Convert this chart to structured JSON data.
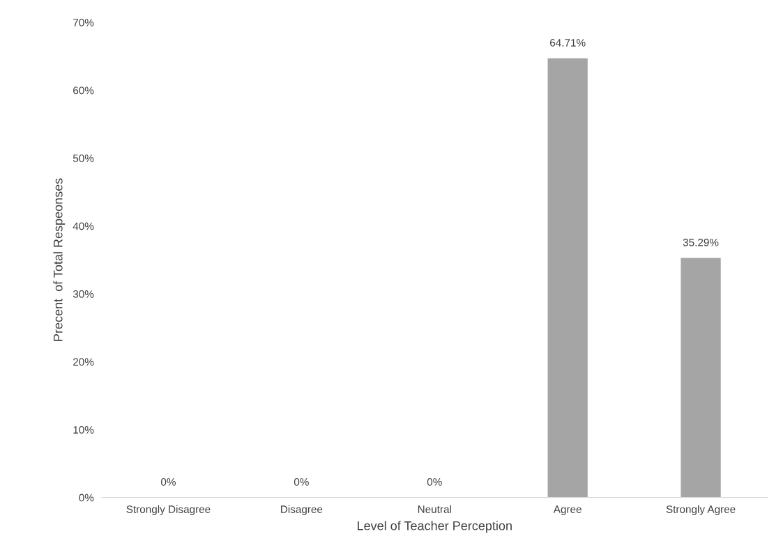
{
  "chart_data": {
    "type": "bar",
    "xlabel": "Level of Teacher Perception",
    "ylabel": "Precent  of Total Respeonses",
    "categories": [
      "Strongly Disagree",
      "Disagree",
      "Neutral",
      "Agree",
      "Strongly Agree"
    ],
    "values": [
      0,
      0,
      0,
      64.71,
      35.29
    ],
    "color": "#a5a5a5",
    "value_labels": [
      "0%",
      "0%",
      "0%",
      "64.71%",
      "35.29%"
    ],
    "ylim": [
      0,
      70
    ],
    "yticks": [
      {
        "value": 0,
        "label": "0%"
      },
      {
        "value": 10,
        "label": "10%"
      },
      {
        "value": 20,
        "label": "20%"
      },
      {
        "value": 30,
        "label": "30%"
      },
      {
        "value": 40,
        "label": "40%"
      },
      {
        "value": 50,
        "label": "50%"
      },
      {
        "value": 60,
        "label": "60%"
      },
      {
        "value": 70,
        "label": "70%"
      }
    ],
    "grid": false
  }
}
